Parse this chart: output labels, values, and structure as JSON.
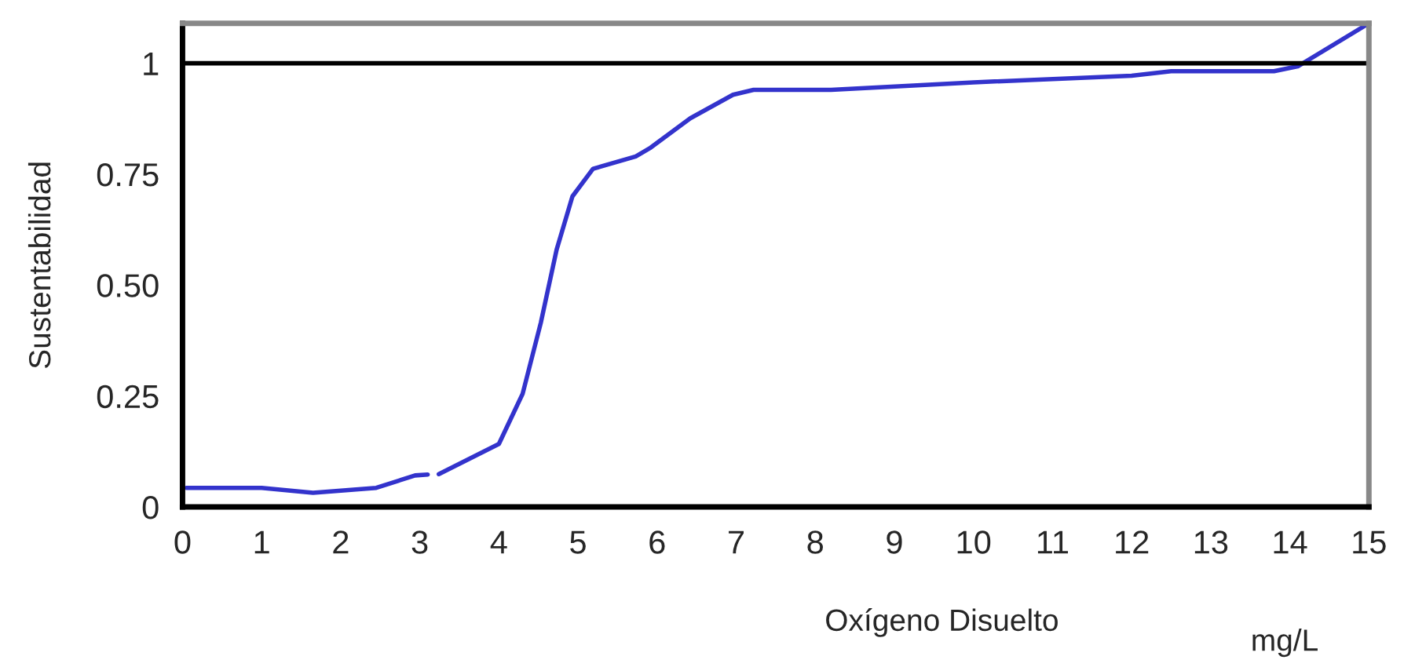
{
  "chart_data": {
    "type": "line",
    "ylabel": "Sustentabilidad",
    "xlabel": "Oxígeno Disuelto",
    "annotations": [
      "mg/L"
    ],
    "xlim": [
      0,
      15
    ],
    "xticks": [
      0,
      1,
      2,
      3,
      4,
      5,
      6,
      7,
      8,
      9,
      10,
      11,
      12,
      13,
      14,
      15
    ],
    "ylim": [
      0,
      1.09
    ],
    "yticks": [
      0,
      0.25,
      {
        "value": 0.5,
        "label": "0.50"
      },
      0.75,
      1
    ],
    "grid": false,
    "ref_lines": [
      {
        "axis": "y",
        "value": 1,
        "color": "#000000"
      }
    ],
    "series": [
      {
        "color": "#3333cc",
        "x": [
          0.05,
          1.0,
          1.65,
          2.45,
          2.94,
          3.1,
          3.15,
          3.24,
          4.0,
          4.3,
          4.53,
          4.73,
          4.93,
          5.19,
          5.73,
          5.92,
          6.42,
          6.96,
          7.22,
          8.2,
          10,
          12,
          12.5,
          13.8,
          14.1,
          15
        ],
        "values": [
          0.043,
          0.043,
          0.032,
          0.043,
          0.071,
          0.073,
          null,
          0.074,
          0.142,
          0.255,
          0.415,
          0.58,
          0.7,
          0.762,
          0.79,
          0.81,
          0.876,
          0.929,
          0.94,
          0.94,
          0.957,
          0.972,
          0.982,
          0.982,
          0.993,
          1.09
        ]
      }
    ]
  }
}
